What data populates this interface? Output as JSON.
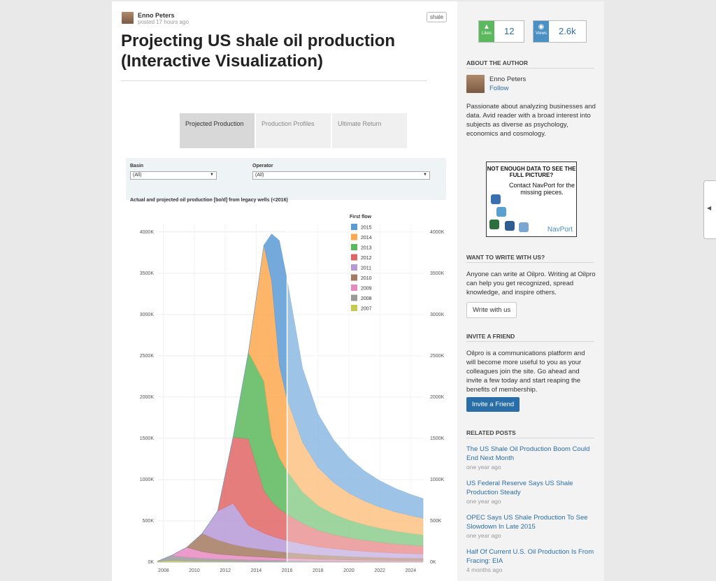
{
  "post": {
    "author": "Enno Peters",
    "posted": "posted 17 hours ago",
    "tag": "shale",
    "title": "Projecting US shale oil production (Interactive Visualization)"
  },
  "dashboard": {
    "tabs": [
      {
        "label": "Projected Production",
        "active": true
      },
      {
        "label": "Production Profiles",
        "active": false
      },
      {
        "label": "Ultimate Return",
        "active": false
      }
    ],
    "filters": {
      "basin_label": "Basin",
      "basin_value": "(All)",
      "operator_label": "Operator",
      "operator_value": "(All)"
    }
  },
  "chart_data": {
    "type": "area",
    "stacked": true,
    "title": "Actual and projected oil production [bo/d] from legacy wells (<2016)",
    "y_ticks": [
      "0K",
      "500K",
      "1000K",
      "1500K",
      "2000K",
      "2500K",
      "3000K",
      "3500K",
      "4000K"
    ],
    "x_ticks": [
      "2008",
      "2010",
      "2012",
      "2014",
      "2016",
      "2018",
      "2020",
      "2022",
      "2024"
    ],
    "ylim": [
      0,
      4100
    ],
    "xlim": [
      2007.6,
      2024.8
    ],
    "legend_title": "First flow",
    "legend_position": "top-center",
    "x": [
      2007.5,
      2008.5,
      2009.5,
      2010.5,
      2011.5,
      2012.5,
      2013.5,
      2014.5,
      2015.0,
      2015.5,
      2016.0,
      2017.0,
      2018.0,
      2019.0,
      2020.0,
      2021.0,
      2022.0,
      2023.0,
      2024.0,
      2024.8
    ],
    "series": [
      {
        "name": "2007",
        "color": "#c5cb4f",
        "values": [
          10,
          20,
          15,
          12,
          10,
          9,
          8,
          7,
          6,
          6,
          5,
          5,
          4,
          4,
          3,
          3,
          3,
          3,
          3,
          3
        ]
      },
      {
        "name": "2008",
        "color": "#9a9a9a",
        "values": [
          0,
          60,
          45,
          35,
          28,
          24,
          20,
          18,
          16,
          15,
          14,
          12,
          10,
          9,
          8,
          7,
          7,
          6,
          6,
          6
        ]
      },
      {
        "name": "2009",
        "color": "#e78ac3",
        "values": [
          0,
          0,
          120,
          80,
          60,
          50,
          42,
          36,
          32,
          30,
          28,
          24,
          20,
          18,
          16,
          14,
          13,
          12,
          11,
          11
        ]
      },
      {
        "name": "2010",
        "color": "#a57a62",
        "values": [
          0,
          0,
          0,
          220,
          170,
          130,
          105,
          90,
          82,
          76,
          70,
          60,
          52,
          46,
          41,
          37,
          34,
          31,
          29,
          28
        ]
      },
      {
        "name": "2011",
        "color": "#b69ad8",
        "values": [
          0,
          0,
          0,
          0,
          350,
          500,
          270,
          200,
          180,
          160,
          145,
          120,
          100,
          88,
          78,
          70,
          63,
          58,
          54,
          50
        ]
      },
      {
        "name": "2012",
        "color": "#e06666",
        "values": [
          0,
          0,
          0,
          0,
          0,
          800,
          1050,
          520,
          420,
          360,
          320,
          250,
          200,
          170,
          150,
          135,
          122,
          112,
          104,
          98
        ]
      },
      {
        "name": "2013",
        "color": "#5cb85c",
        "values": [
          0,
          0,
          0,
          0,
          0,
          0,
          1050,
          1320,
          780,
          620,
          520,
          380,
          300,
          250,
          215,
          190,
          170,
          155,
          143,
          135
        ]
      },
      {
        "name": "2014",
        "color": "#fba84f",
        "values": [
          0,
          0,
          0,
          0,
          0,
          0,
          0,
          1650,
          1890,
          1120,
          870,
          600,
          460,
          380,
          325,
          285,
          255,
          232,
          213,
          200
        ]
      },
      {
        "name": "2015",
        "color": "#5b9bd5",
        "values": [
          0,
          0,
          0,
          0,
          0,
          0,
          0,
          0,
          570,
          1510,
          1450,
          900,
          650,
          520,
          430,
          365,
          320,
          285,
          258,
          240
        ]
      }
    ],
    "highlight_year": 2016
  },
  "sidebar": {
    "likes_label": "Likes",
    "likes_count": "12",
    "views_label": "Views",
    "views_count": "2.6k",
    "about_heading": "About the author",
    "author_name": "Enno Peters",
    "follow": "Follow",
    "bio": "Passionate about analyzing businesses and data. Avid reader with a broad interest into subjects as diverse as psychology, economics and cosmology.",
    "ad": {
      "headline": "NOT ENOUGH DATA TO SEE THE FULL PICTURE?",
      "body": "Contact NavPort for the missing pieces.",
      "brand": "NavPort"
    },
    "write_heading": "Want to write with us?",
    "write_text": "Anyone can write at Oilpro. Writing at Oilpro can help you get recognized, spread knowledge, and inspire others.",
    "write_button": "Write with us",
    "invite_heading": "Invite a friend",
    "invite_text": "Oilpro is a communications platform and will become more useful to you as your colleagues join the site. Go ahead and invite a few today and start reaping the benefits of membership.",
    "invite_button": "Invite a Friend",
    "related_heading": "Related posts",
    "related": [
      {
        "title": "The US Shale Oil Production Boom Could End Next Month",
        "date": "one year ago"
      },
      {
        "title": "US Federal Reserve Says US Shale Production Steady",
        "date": "one year ago"
      },
      {
        "title": "OPEC Says US Shale Production To See Slowdown In Late 2015",
        "date": "one year ago"
      },
      {
        "title": "Half Of Current U.S. Oil Production Is From Fracing: EIA",
        "date": "4 months ago"
      }
    ]
  },
  "colors": {
    "accent": "#2a6ea8",
    "likes_badge": "#5cb85c",
    "views_badge": "#4a90c4"
  },
  "icons": {
    "likes": "thumbs-up-icon",
    "views": "eye-icon",
    "collapse": "caret-left-icon"
  }
}
